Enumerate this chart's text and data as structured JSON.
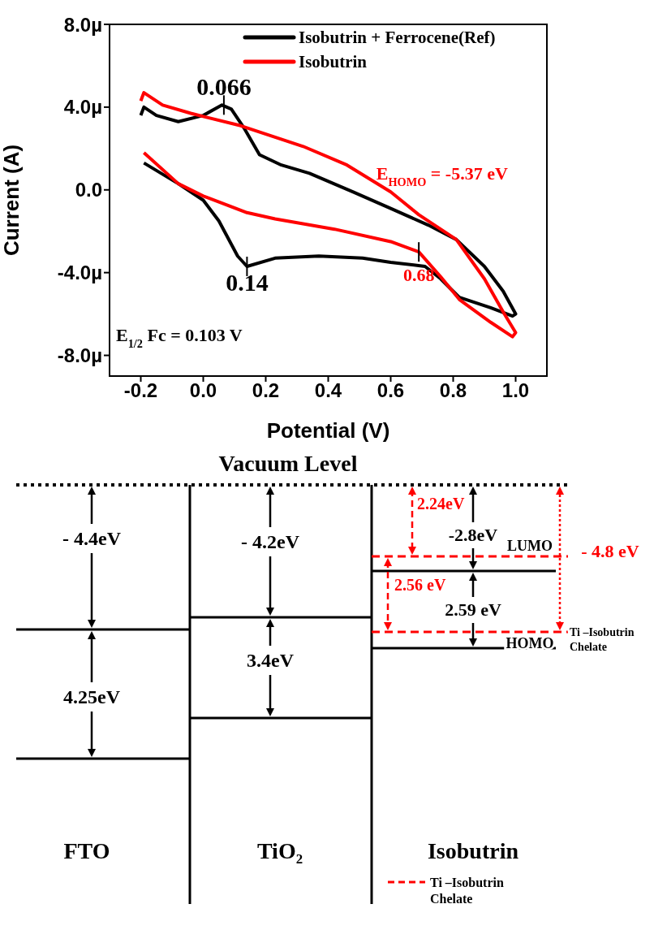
{
  "chart_data": [
    {
      "type": "line",
      "xlabel": "Potential (V)",
      "ylabel": "Current (A)",
      "xlim": [
        -0.3,
        1.1
      ],
      "ylim": [
        -9,
        8
      ],
      "xticks": [
        -0.2,
        {
          "value": 0,
          "label": "0.0"
        },
        0.2,
        0.4,
        0.6,
        0.8,
        {
          "value": 1,
          "label": "1.0"
        }
      ],
      "yticks": [
        {
          "value": -8,
          "label": "-8.0µ"
        },
        {
          "value": -4,
          "label": "-4.0µ"
        },
        {
          "value": 0,
          "label": "0.0"
        },
        {
          "value": 4,
          "label": "4.0µ"
        },
        {
          "value": 8,
          "label": "8.0µ"
        }
      ],
      "grid": false,
      "legend": "top right",
      "marker": "none",
      "line_style": "solid",
      "series": [
        {
          "name": "Isobutrin + Ferrocene(Ref)",
          "color": "#000000",
          "x": [
            -0.2,
            -0.19,
            -0.15,
            -0.08,
            0.0,
            0.06,
            0.09,
            0.13,
            0.18,
            0.25,
            0.34,
            0.48,
            0.6,
            0.72,
            0.81,
            0.9,
            0.96,
            1.0,
            0.99,
            0.92,
            0.82,
            0.76,
            0.71,
            0.6,
            0.51,
            0.37,
            0.23,
            0.14,
            0.11,
            0.05,
            0.0,
            -0.08,
            -0.19
          ],
          "values": [
            3.6,
            4.0,
            3.6,
            3.3,
            3.6,
            4.1,
            3.9,
            3.0,
            1.7,
            1.2,
            0.8,
            -0.1,
            -0.9,
            -1.7,
            -2.4,
            -3.7,
            -4.9,
            -6.0,
            -6.1,
            -5.7,
            -5.2,
            -4.3,
            -3.7,
            -3.5,
            -3.3,
            -3.2,
            -3.3,
            -3.7,
            -3.2,
            -1.5,
            -0.5,
            0.3,
            1.3
          ]
        },
        {
          "name": "Isobutrin",
          "color": "#ff0000",
          "x": [
            -0.2,
            -0.19,
            -0.13,
            -0.04,
            0.12,
            0.32,
            0.46,
            0.6,
            0.69,
            0.81,
            0.9,
            0.96,
            1.0,
            0.99,
            0.92,
            0.82,
            0.76,
            0.69,
            0.6,
            0.42,
            0.23,
            0.14,
            0.0,
            -0.08,
            -0.19
          ],
          "values": [
            4.3,
            4.7,
            4.1,
            3.7,
            3.1,
            2.1,
            1.2,
            -0.1,
            -1.2,
            -2.4,
            -4.3,
            -5.9,
            -6.9,
            -7.1,
            -6.4,
            -5.3,
            -4.2,
            -3.0,
            -2.5,
            -1.9,
            -1.4,
            -1.1,
            -0.3,
            0.3,
            1.8
          ]
        }
      ],
      "annotations": [
        {
          "text": "0.066",
          "x": 0.066,
          "y": 4.1
        },
        {
          "text": "0.14",
          "x": 0.14,
          "y": -3.7
        },
        {
          "text": "0.68",
          "x": 0.69,
          "y": -3.0
        },
        "E$_{HOMO}$ = -5.37 eV",
        "E$_{1/2}$ Fc = 0.103 V"
      ]
    },
    {
      "type": "other",
      "title": "Vacuum Level",
      "categories": [
        "FTO",
        "TiO₂",
        "Isobutrin"
      ],
      "annotations": [
        "- 4.4eV",
        "4.25eV",
        "- 4.2eV",
        "3.4eV",
        "2.24eV",
        "-2.8eV",
        "LUMO",
        "- 4.8 eV",
        "2.56 eV",
        "2.59 eV",
        "HOMO",
        "Ti –Isobutrin Chelate",
        "Ti –Isobutrin Chelate"
      ]
    }
  ]
}
